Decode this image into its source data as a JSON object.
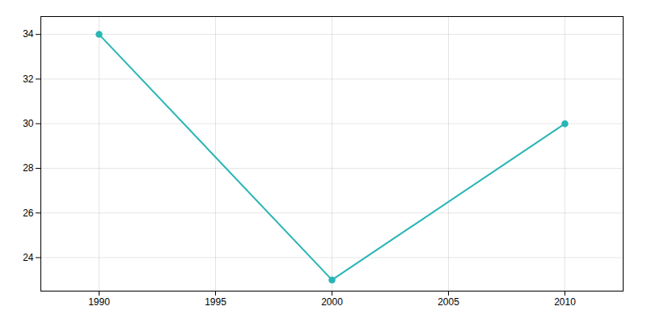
{
  "chart_data": {
    "type": "line",
    "x": [
      1990,
      2000,
      2010
    ],
    "values": [
      34,
      23,
      30
    ],
    "color": "#2ab5b5",
    "marker": "circle",
    "xlim": [
      1987.5,
      2012.5
    ],
    "ylim": [
      22.5,
      34.8
    ],
    "xticks": [
      1990,
      1995,
      2000,
      2005,
      2010
    ],
    "yticks": [
      24,
      26,
      28,
      30,
      32,
      34
    ],
    "grid": true
  }
}
